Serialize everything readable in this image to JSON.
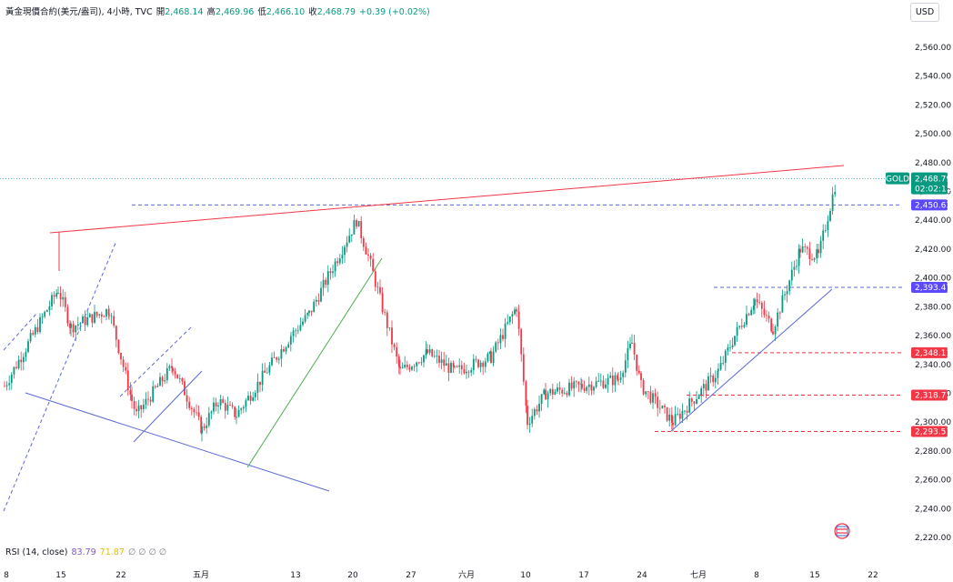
{
  "header": {
    "symbol": "黃金現價合約(美元/盎司), 4小時, TVC",
    "open_label": "開",
    "open": "2,468.14",
    "high_label": "高",
    "high": "2,469.96",
    "low_label": "低",
    "low": "2,466.10",
    "close_label": "收",
    "close": "2,468.79",
    "change": "+0.39 (+0.02%)"
  },
  "currency": "USD",
  "rsi": {
    "label": "RSI (14, close)",
    "value": "83.79",
    "ma": "71.87",
    "extra": "∅ ∅ ∅ ∅"
  },
  "colors": {
    "up": "#089981",
    "down": "#f23645",
    "trend_red": "#f23645",
    "trend_blue": "#5b6ad6",
    "trend_green": "#4caf50",
    "tag_purple": "#5b48ff",
    "tag_red": "#f23645"
  },
  "chart_data": {
    "type": "candlestick",
    "yticks": [
      "2,220.00",
      "2,240.00",
      "2,260.00",
      "2,280.00",
      "2,300.00",
      "2,320.00",
      "2,340.00",
      "2,360.00",
      "2,380.00",
      "2,400.00",
      "2,420.00",
      "2,440.00",
      "2,460.00",
      "2,480.00",
      "2,500.00",
      "2,520.00",
      "2,540.00",
      "2,560.00"
    ],
    "xticks": [
      "8",
      "15",
      "22",
      "五月",
      "13",
      "20",
      "27",
      "六月",
      "10",
      "17",
      "24",
      "七月",
      "8",
      "15",
      "22"
    ],
    "ylim": [
      2216,
      2580
    ],
    "price_tag": {
      "name": "GOLD",
      "value": "2,468.79",
      "countdown": "02:02:13"
    },
    "levels": [
      "2,450.63",
      "2,393.47",
      "2,348.11",
      "2,318.71",
      "2,293.51"
    ],
    "close_path": [
      {
        "d": "8",
        "p": 2325
      },
      {
        "d": "15",
        "p": 2392
      },
      {
        "d": "15",
        "p": 2366
      },
      {
        "d": "22",
        "p": 2378
      },
      {
        "d": "22",
        "p": 2315
      },
      {
        "d": "22",
        "p": 2305
      },
      {
        "d": "22",
        "p": 2339
      },
      {
        "d": "五月",
        "p": 2295
      },
      {
        "d": "五月",
        "p": 2315
      },
      {
        "d": "五月",
        "p": 2305
      },
      {
        "d": "13",
        "p": 2360
      },
      {
        "d": "13",
        "p": 2375
      },
      {
        "d": "20",
        "p": 2440
      },
      {
        "d": "20",
        "p": 2415
      },
      {
        "d": "20",
        "p": 2335
      },
      {
        "d": "27",
        "p": 2348
      },
      {
        "d": "27",
        "p": 2335
      },
      {
        "d": "六月",
        "p": 2345
      },
      {
        "d": "六月",
        "p": 2380
      },
      {
        "d": "10",
        "p": 2300
      },
      {
        "d": "10",
        "p": 2320
      },
      {
        "d": "17",
        "p": 2325
      },
      {
        "d": "17",
        "p": 2330
      },
      {
        "d": "24",
        "p": 2355
      },
      {
        "d": "24",
        "p": 2325
      },
      {
        "d": "24",
        "p": 2300
      },
      {
        "d": "七月",
        "p": 2335
      },
      {
        "d": "8",
        "p": 2360
      },
      {
        "d": "8",
        "p": 2385
      },
      {
        "d": "8",
        "p": 2365
      },
      {
        "d": "15",
        "p": 2420
      },
      {
        "d": "15",
        "p": 2415
      },
      {
        "d": "15",
        "p": 2468.79
      }
    ]
  }
}
